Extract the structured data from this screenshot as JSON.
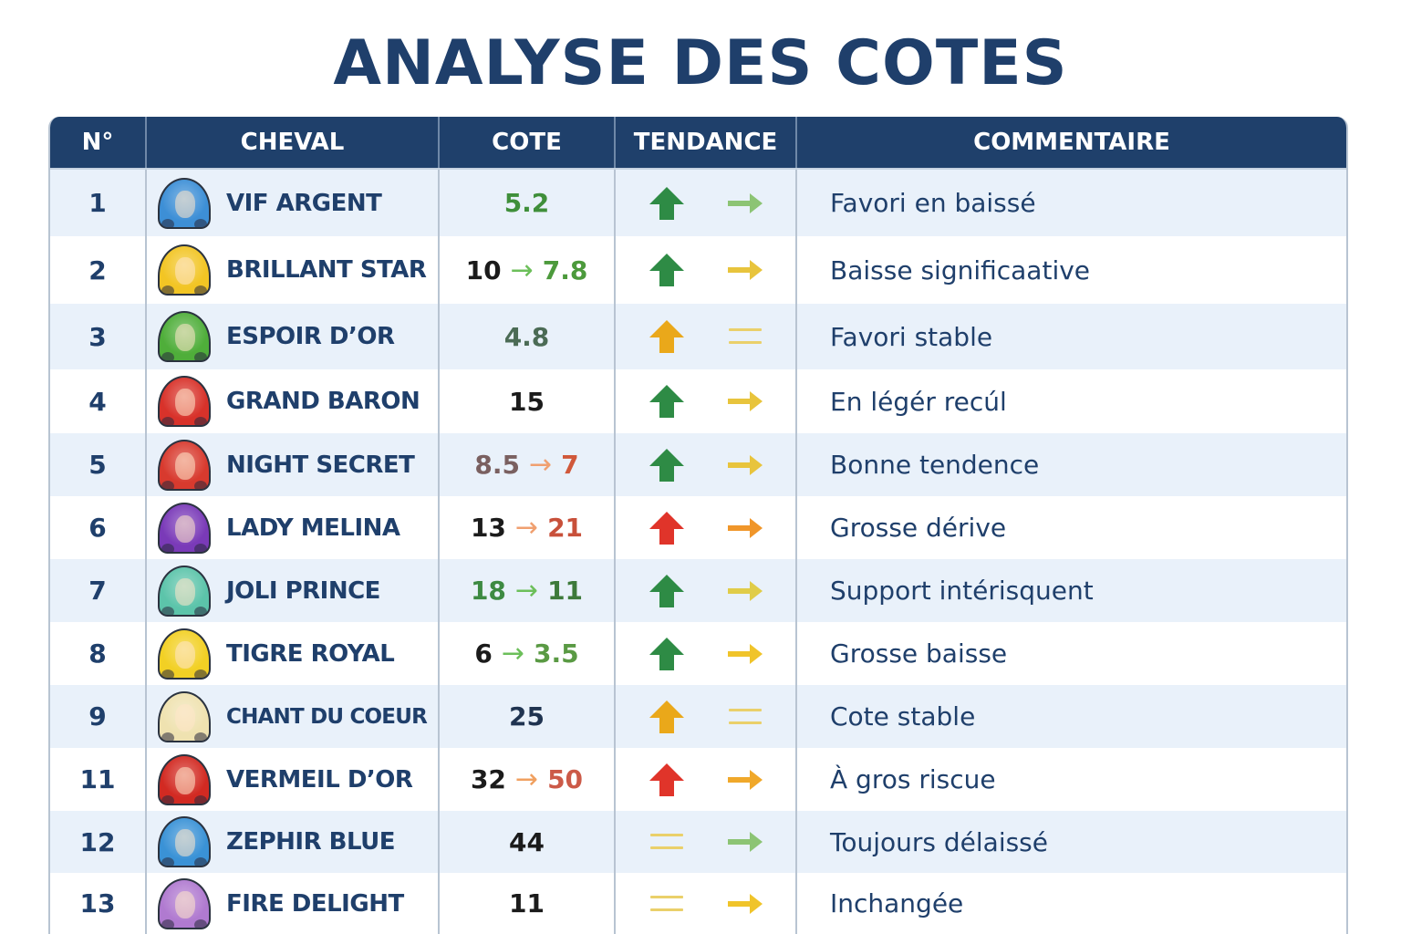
{
  "title": "ANALYSE DES COTES",
  "columns": [
    "N°",
    "CHEVAL",
    "COTE",
    "TENDANCE",
    "COMMENTAIRE"
  ],
  "colors": {
    "header_bg": "#1f406b",
    "title": "#1f3f6b",
    "row_alt": "#e9f1fa",
    "green": "#2e8b45",
    "light_green": "#8cc474",
    "yellow": "#e8c43c",
    "orange": "#f0962a",
    "red": "#e0342a",
    "amber": "#eaa81a"
  },
  "rows": [
    {
      "num": "1",
      "horse": "VIF ARGENT",
      "avatar_color": "#3d8fd6",
      "cote": {
        "from": "",
        "to": "5.2",
        "from_color": "#1b1b1b",
        "arrow_color": "#6cbf5a",
        "to_color": "#3f8f3a"
      },
      "trend": {
        "primary": "up-arrow",
        "primary_color": "#2e8b45",
        "secondary": "right-arrow",
        "secondary_color": "#8cc474"
      },
      "comment": "Favori en baissé"
    },
    {
      "num": "2",
      "horse": "BRILLANT STAR",
      "avatar_color": "#f2c524",
      "cote": {
        "from": "10",
        "to": "7.8",
        "from_color": "#1b1b1b",
        "arrow_color": "#6cbf5a",
        "to_color": "#4c9a3c"
      },
      "trend": {
        "primary": "up-arrow",
        "primary_color": "#2e8b45",
        "secondary": "right-arrow",
        "secondary_color": "#e8c43c"
      },
      "comment": "Baisse significaative"
    },
    {
      "num": "3",
      "horse": "ESPOIR D’OR",
      "avatar_color": "#4fae3a",
      "cote": {
        "from": "",
        "to": "4.8",
        "from_color": "#1b1b1b",
        "arrow_color": "#6cbf5a",
        "to_color": "#4b6b55"
      },
      "trend": {
        "primary": "up-arrow",
        "primary_color": "#eaa81a",
        "secondary": "equals",
        "secondary_color": "#ead06a"
      },
      "comment": "Favori stable"
    },
    {
      "num": "4",
      "horse": "GRAND BARON",
      "avatar_color": "#d8322a",
      "cote": {
        "from": "",
        "to": "15",
        "from_color": "#1b1b1b",
        "arrow_color": "#6cbf5a",
        "to_color": "#1b1b1b"
      },
      "trend": {
        "primary": "up-arrow",
        "primary_color": "#2e8b45",
        "secondary": "right-arrow",
        "secondary_color": "#e8c43c"
      },
      "comment": "En légér recúl"
    },
    {
      "num": "5",
      "horse": "NIGHT SECRET",
      "avatar_color": "#d83a2e",
      "cote": {
        "from": "8.5",
        "to": "7",
        "from_color": "#7a6060",
        "arrow_color": "#f0a070",
        "to_color": "#d0583a"
      },
      "trend": {
        "primary": "up-arrow",
        "primary_color": "#2e8b45",
        "secondary": "right-arrow",
        "secondary_color": "#e8c43c"
      },
      "comment": "Bonne tendence"
    },
    {
      "num": "6",
      "horse": "LADY MELINA",
      "avatar_color": "#7a3ab8",
      "cote": {
        "from": "13",
        "to": "21",
        "from_color": "#1b1b1b",
        "arrow_color": "#f0a070",
        "to_color": "#c8503a"
      },
      "trend": {
        "primary": "up-arrow",
        "primary_color": "#e0342a",
        "secondary": "right-arrow",
        "secondary_color": "#f0962a"
      },
      "comment": "Grosse dérive"
    },
    {
      "num": "7",
      "horse": "JOLI PRINCE",
      "avatar_color": "#5cc4aa",
      "cote": {
        "from": "18",
        "to": "11",
        "from_color": "#3d8a42",
        "arrow_color": "#6cbf5a",
        "to_color": "#3d7a3a"
      },
      "trend": {
        "primary": "up-arrow",
        "primary_color": "#2e8b45",
        "secondary": "right-arrow",
        "secondary_color": "#e0cc48"
      },
      "comment": "Support intérisquent"
    },
    {
      "num": "8",
      "horse": "TIGRE ROYAL",
      "avatar_color": "#f2d024",
      "cote": {
        "from": "6",
        "to": "3.5",
        "from_color": "#1b1b1b",
        "arrow_color": "#6cbf5a",
        "to_color": "#5a9a44"
      },
      "trend": {
        "primary": "up-arrow",
        "primary_color": "#2e8b45",
        "secondary": "right-arrow",
        "secondary_color": "#f0c42a"
      },
      "comment": "Grosse baisse"
    },
    {
      "num": "9",
      "horse": "CHANT DU COEUR",
      "avatar_color": "#efe2b0",
      "cote": {
        "from": "",
        "to": "25",
        "from_color": "#1b1b1b",
        "arrow_color": "#6cbf5a",
        "to_color": "#1f3350"
      },
      "trend": {
        "primary": "up-arrow",
        "primary_color": "#eaa81a",
        "secondary": "equals",
        "secondary_color": "#ead06a"
      },
      "comment": "Cote stable"
    },
    {
      "num": "11",
      "horse": "VERMEIL D’OR",
      "avatar_color": "#d22a22",
      "cote": {
        "from": "32",
        "to": "50",
        "from_color": "#1b1b1b",
        "arrow_color": "#f0a060",
        "to_color": "#cc5a48"
      },
      "trend": {
        "primary": "up-arrow",
        "primary_color": "#e0342a",
        "secondary": "right-arrow",
        "secondary_color": "#f0a82a"
      },
      "comment": "À gros riscue"
    },
    {
      "num": "12",
      "horse": "ZEPHIR BLUE",
      "avatar_color": "#3a92d6",
      "cote": {
        "from": "",
        "to": "44",
        "from_color": "#1b1b1b",
        "arrow_color": "#6cbf5a",
        "to_color": "#1b1b1b"
      },
      "trend": {
        "primary": "equals",
        "primary_color": "#ead06a",
        "secondary": "right-arrow",
        "secondary_color": "#8cc474"
      },
      "comment": "Toujours délaissé"
    },
    {
      "num": "13",
      "horse": "FIRE DELIGHT",
      "avatar_color": "#b07ad0",
      "cote": {
        "from": "",
        "to": "11",
        "from_color": "#1b1b1b",
        "arrow_color": "#6cbf5a",
        "to_color": "#1b1b1b"
      },
      "trend": {
        "primary": "equals",
        "primary_color": "#ead06a",
        "secondary": "right-arrow",
        "secondary_color": "#f0c42a"
      },
      "comment": "Inchangée"
    }
  ]
}
